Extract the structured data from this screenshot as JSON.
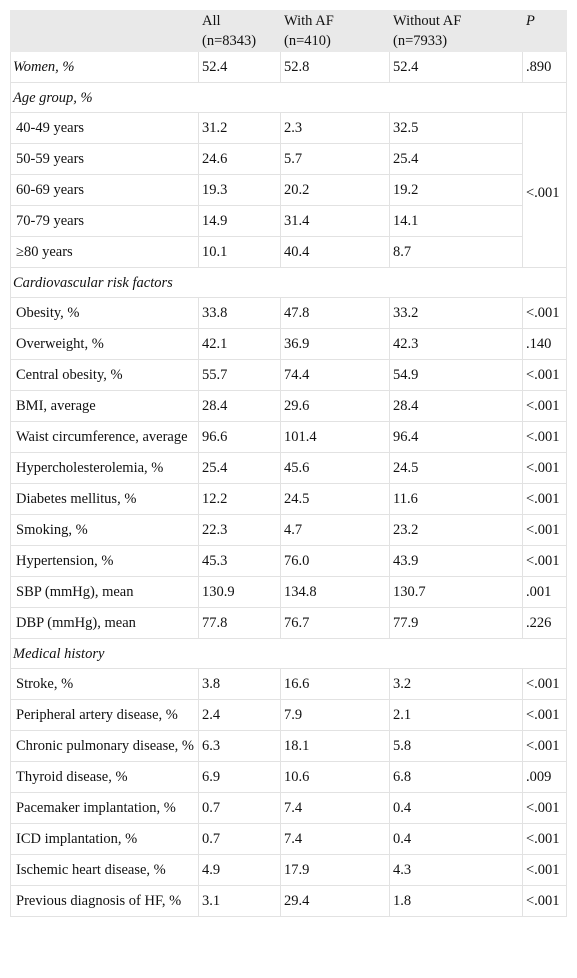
{
  "table": {
    "header": {
      "columns": [
        {
          "label": "All",
          "n": "(n=8343)"
        },
        {
          "label": "With AF",
          "n": "(n=410)"
        },
        {
          "label": "Without AF",
          "n": "(n=7933)"
        }
      ],
      "p": "P"
    },
    "first_row": [
      "Women, %",
      "52.4",
      "52.8",
      "52.4",
      ".890"
    ],
    "sections": [
      {
        "title": "Age group, %",
        "p": "<.001",
        "rows": [
          [
            "40-49 years",
            "31.2",
            "2.3",
            "32.5"
          ],
          [
            "50-59 years",
            "24.6",
            "5.7",
            "25.4"
          ],
          [
            "60-69 years",
            "19.3",
            "20.2",
            "19.2"
          ],
          [
            "70-79 years",
            "14.9",
            "31.4",
            "14.1"
          ],
          [
            "≥80 years",
            "10.1",
            "40.4",
            "8.7"
          ]
        ]
      },
      {
        "title": "Cardiovascular risk factors",
        "rows": [
          [
            "Obesity, %",
            "33.8",
            "47.8",
            "33.2",
            "<.001"
          ],
          [
            "Overweight, %",
            "42.1",
            "36.9",
            "42.3",
            ".140"
          ],
          [
            "Central obesity, %",
            "55.7",
            "74.4",
            "54.9",
            "<.001"
          ],
          [
            "BMI, average",
            "28.4",
            "29.6",
            "28.4",
            "<.001"
          ],
          [
            "Waist circumference, average",
            "96.6",
            "101.4",
            "96.4",
            "<.001"
          ],
          [
            "Hypercholesterolemia, %",
            "25.4",
            "45.6",
            "24.5",
            "<.001"
          ],
          [
            "Diabetes mellitus, %",
            "12.2",
            "24.5",
            "11.6",
            "<.001"
          ],
          [
            "Smoking, %",
            "22.3",
            "4.7",
            "23.2",
            "<.001"
          ],
          [
            "Hypertension, %",
            "45.3",
            "76.0",
            "43.9",
            "<.001"
          ],
          [
            "SBP (mmHg), mean",
            "130.9",
            "134.8",
            "130.7",
            ".001"
          ],
          [
            "DBP (mmHg), mean",
            "77.8",
            "76.7",
            "77.9",
            ".226"
          ]
        ]
      },
      {
        "title": "Medical history",
        "rows": [
          [
            "Stroke, %",
            "3.8",
            "16.6",
            "3.2",
            "<.001"
          ],
          [
            "Peripheral artery disease, %",
            "2.4",
            "7.9",
            "2.1",
            "<.001"
          ],
          [
            "Chronic pulmonary disease, %",
            "6.3",
            "18.1",
            "5.8",
            "<.001"
          ],
          [
            "Thyroid disease, %",
            "6.9",
            "10.6",
            "6.8",
            ".009"
          ],
          [
            "Pacemaker implantation, %",
            "0.7",
            "7.4",
            "0.4",
            "<.001"
          ],
          [
            "ICD implantation, %",
            "0.7",
            "7.4",
            "0.4",
            "<.001"
          ],
          [
            "Ischemic heart disease, %",
            "4.9",
            "17.9",
            "4.3",
            "<.001"
          ],
          [
            "Previous diagnosis of HF, %",
            "3.1",
            "29.4",
            "1.8",
            "<.001"
          ]
        ]
      }
    ]
  }
}
